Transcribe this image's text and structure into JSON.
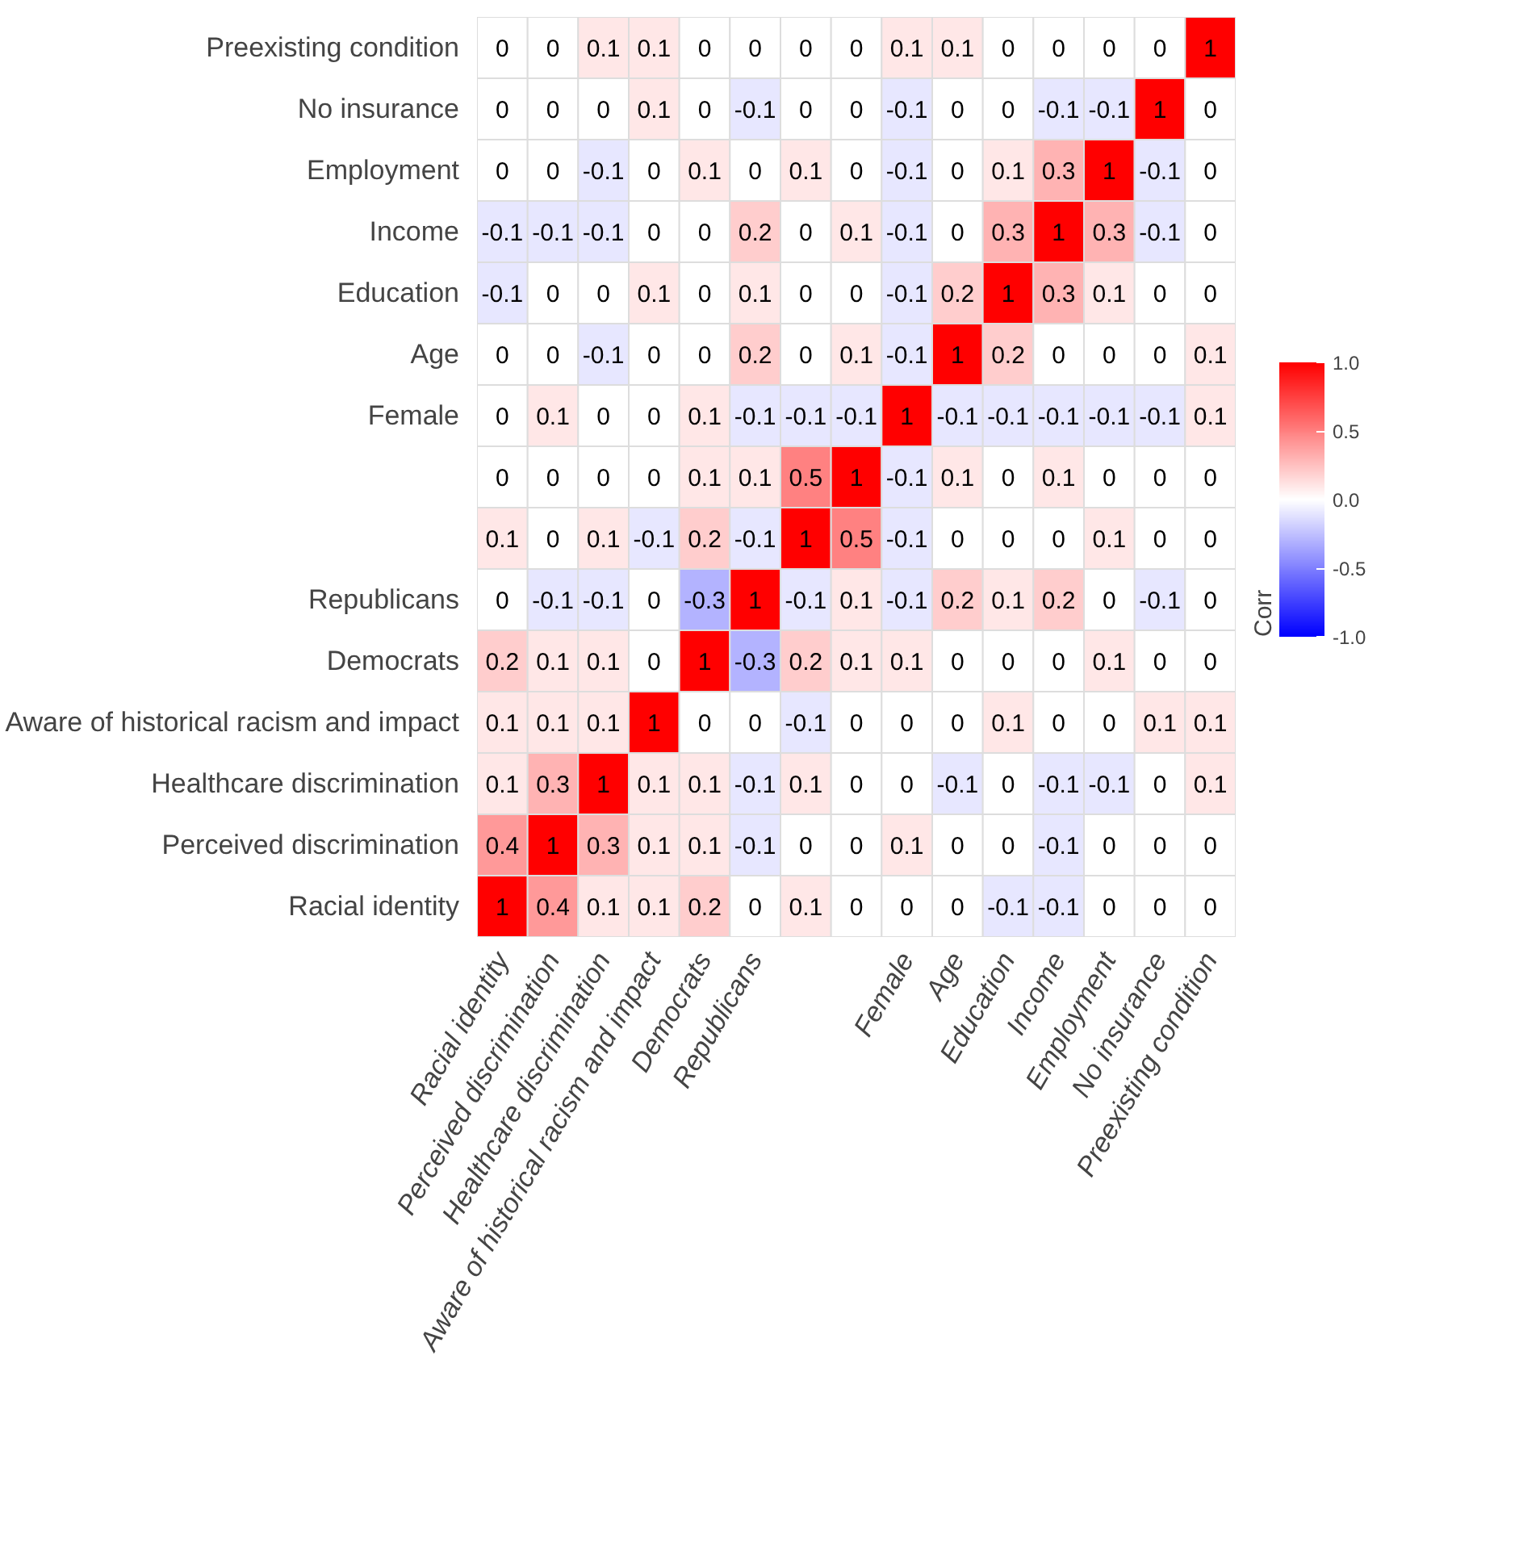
{
  "chart_data": {
    "type": "heatmap",
    "clabel": "Corr",
    "categories": [
      "Racial identity",
      "Perceived discrimination",
      "Healthcare discrimination",
      "Aware of historical racism and impact",
      "Democrats",
      "Republicans",
      null,
      null,
      "Female",
      "Age",
      "Education",
      "Income",
      "Employment",
      "No insurance",
      "Preexisting condition"
    ],
    "y_categories": [
      "Preexisting condition",
      "No insurance",
      "Employment",
      "Income",
      "Education",
      "Age",
      "Female",
      null,
      null,
      "Republicans",
      "Democrats",
      "Aware of historical racism and impact",
      "Healthcare discrimination",
      "Perceived discrimination",
      "Racial identity"
    ],
    "cells": [
      [
        0,
        0,
        0.1,
        0.1,
        0,
        0,
        0,
        0,
        0.1,
        0.1,
        0,
        0,
        0,
        0,
        1
      ],
      [
        0,
        0,
        0,
        0.1,
        0,
        -0.1,
        0,
        0,
        -0.1,
        0,
        0,
        -0.1,
        -0.1,
        1,
        0
      ],
      [
        0,
        0,
        -0.1,
        0,
        0.1,
        0,
        0.1,
        0,
        -0.1,
        0,
        0.1,
        0.3,
        1,
        -0.1,
        0
      ],
      [
        -0.1,
        -0.1,
        -0.1,
        0,
        0,
        0.2,
        0,
        0.1,
        -0.1,
        0,
        0.3,
        1,
        0.3,
        -0.1,
        0
      ],
      [
        -0.1,
        0,
        0,
        0.1,
        0,
        0.1,
        0,
        0,
        -0.1,
        0.2,
        1,
        0.3,
        0.1,
        0,
        0
      ],
      [
        0,
        0,
        -0.1,
        0,
        0,
        0.2,
        0,
        0.1,
        -0.1,
        1,
        0.2,
        0,
        0,
        0,
        0.1
      ],
      [
        0,
        0.1,
        0,
        0,
        0.1,
        -0.1,
        -0.1,
        -0.1,
        1,
        -0.1,
        -0.1,
        -0.1,
        -0.1,
        -0.1,
        0.1
      ],
      [
        0,
        0,
        0,
        0,
        0.1,
        0.1,
        0.5,
        1,
        -0.1,
        0.1,
        0,
        0.1,
        0,
        0,
        0
      ],
      [
        0.1,
        0,
        0.1,
        -0.1,
        0.2,
        -0.1,
        1,
        0.5,
        -0.1,
        0,
        0,
        0,
        0.1,
        0,
        0
      ],
      [
        0,
        -0.1,
        -0.1,
        0,
        -0.3,
        1,
        -0.1,
        0.1,
        -0.1,
        0.2,
        0.1,
        0.2,
        0,
        -0.1,
        0
      ],
      [
        0.2,
        0.1,
        0.1,
        0,
        1,
        -0.3,
        0.2,
        0.1,
        0.1,
        0,
        0,
        0,
        0.1,
        0,
        0
      ],
      [
        0.1,
        0.1,
        0.1,
        1,
        0,
        0,
        -0.1,
        0,
        0,
        0,
        0.1,
        0,
        0,
        0.1,
        0.1
      ],
      [
        0.1,
        0.3,
        1,
        0.1,
        0.1,
        -0.1,
        0.1,
        0,
        0,
        -0.1,
        0,
        -0.1,
        -0.1,
        0,
        0.1
      ],
      [
        0.4,
        1,
        0.3,
        0.1,
        0.1,
        -0.1,
        0,
        0,
        0.1,
        0,
        0,
        -0.1,
        0,
        0,
        0
      ],
      [
        1,
        0.4,
        0.1,
        0.1,
        0.2,
        0,
        0.1,
        0,
        0,
        0,
        -0.1,
        -0.1,
        0,
        0,
        0
      ]
    ],
    "clim": [
      -1,
      1
    ],
    "cticks": [
      {
        "value": -1,
        "label": "-1.0"
      },
      {
        "value": -0.5,
        "label": "-0.5"
      },
      {
        "value": 0,
        "label": "0.0"
      },
      {
        "value": 0.5,
        "label": "0.5"
      },
      {
        "value": 1,
        "label": "1.0"
      }
    ],
    "data_labels": true
  }
}
